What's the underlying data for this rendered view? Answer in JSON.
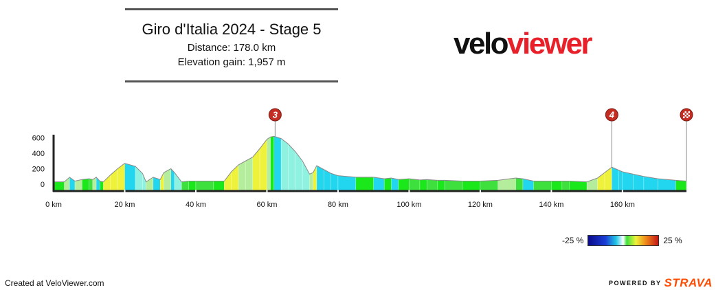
{
  "header": {
    "title": "Giro d'Italia 2024 - Stage 5",
    "distance": "Distance: 178.0 km",
    "elevation_gain": "Elevation gain: 1,957 m"
  },
  "logo": {
    "part1": "velo",
    "part2": "viewer"
  },
  "footer": {
    "created": "Created at VeloViewer.com",
    "powered_by": "POWERED BY",
    "strava": "STRAVA"
  },
  "legend": {
    "min_label": "-25 %",
    "max_label": "25 %"
  },
  "chart_data": {
    "type": "area",
    "xlabel": "",
    "ylabel": "",
    "x_unit": "km",
    "xlim": [
      0,
      178
    ],
    "ylim": [
      -40,
      600
    ],
    "y_ticks": [
      0,
      200,
      400,
      600
    ],
    "x_ticks": [
      0,
      20,
      40,
      60,
      80,
      100,
      120,
      140,
      160
    ],
    "x_tick_labels": [
      "0 km",
      "20 km",
      "40 km",
      "60 km",
      "80 km",
      "100 km",
      "120 km",
      "140 km",
      "160 km"
    ],
    "grid": false,
    "series": [
      {
        "x": [
          0,
          3,
          4.5,
          6,
          8,
          10,
          11,
          12,
          13,
          14,
          16,
          18,
          20,
          23,
          25,
          26,
          28,
          30,
          31,
          33,
          34,
          36,
          38,
          40,
          45,
          48,
          50,
          52,
          54,
          56,
          58,
          60,
          61,
          62,
          64,
          66,
          68,
          70,
          72,
          73,
          74,
          76,
          78,
          80,
          85,
          90,
          93,
          95,
          97,
          100,
          103,
          105,
          108,
          110,
          115,
          120,
          125,
          130,
          132,
          135,
          140,
          143,
          145,
          150,
          153,
          155,
          157,
          159,
          160,
          163,
          166,
          170,
          175,
          178
        ],
        "y": [
          30,
          30,
          90,
          40,
          60,
          70,
          60,
          90,
          40,
          30,
          120,
          200,
          270,
          230,
          140,
          30,
          90,
          60,
          150,
          200,
          150,
          30,
          40,
          40,
          40,
          40,
          160,
          250,
          300,
          350,
          460,
          580,
          610,
          620,
          590,
          520,
          420,
          300,
          130,
          150,
          240,
          190,
          140,
          110,
          90,
          90,
          70,
          80,
          60,
          70,
          55,
          60,
          50,
          50,
          40,
          40,
          50,
          80,
          70,
          40,
          40,
          40,
          40,
          30,
          80,
          150,
          220,
          180,
          160,
          130,
          100,
          70,
          50,
          40
        ]
      }
    ],
    "gradient_colors": [
      "#3de03d",
      "#c8eed0",
      "#eef23a",
      "#8ff2e0",
      "#22d6f0",
      "#b4ee9c",
      "#1ae81a"
    ],
    "climbs": [
      {
        "label": "3",
        "km": 62.3,
        "elevation": 620
      },
      {
        "label": "4",
        "km": 157,
        "elevation": 220
      },
      {
        "label": "finish-flag-icon",
        "km": 178,
        "elevation": 40
      }
    ]
  }
}
